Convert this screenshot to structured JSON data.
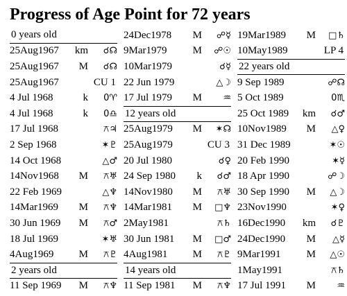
{
  "title": "Progress of Age Point for 72 years",
  "columns": [
    {
      "rows": [
        {
          "heading": "0 years old"
        },
        {
          "date": "25Aug1967",
          "tag": "km",
          "aspect": "☌☊"
        },
        {
          "date": "25Aug1967",
          "tag": "M",
          "aspect": "☌☊"
        },
        {
          "date": "25Aug1967",
          "tag": "CU 1"
        },
        {
          "date": "4 Jul 1968",
          "tag": "k",
          "aspect": "0♈"
        },
        {
          "date": "4 Jul 1968",
          "tag": "k",
          "aspect": "0♎"
        },
        {
          "date": "17 Jul 1968",
          "aspect": "⚻♃"
        },
        {
          "date": "2 Sep 1968",
          "aspect": "✶♇"
        },
        {
          "date": "14 Oct 1968",
          "aspect": "△♂"
        },
        {
          "date": "14Nov1968",
          "tag": "M",
          "aspect": "⚻♅"
        },
        {
          "date": "22 Feb 1969",
          "aspect": "△♆"
        },
        {
          "date": "14Mar1969",
          "tag": "M",
          "aspect": "⚻♆"
        },
        {
          "date": "30 Jun 1969",
          "tag": "M",
          "aspect": "⚻♂"
        },
        {
          "date": "18 Jul 1969",
          "aspect": "✶♅"
        },
        {
          "date": "4Aug1969",
          "tag": "M",
          "aspect": "⚻♇"
        },
        {
          "heading": "2 years old"
        },
        {
          "date": "11 Sep 1969",
          "tag": "M",
          "aspect": "⚻♆"
        }
      ]
    },
    {
      "rows": [
        {
          "date": "24Dec1978",
          "tag": "M",
          "aspect": "☍☿"
        },
        {
          "date": "9Mar1979",
          "tag": "M",
          "aspect": "☍☉"
        },
        {
          "date": "10Mar1979",
          "aspect": "☌☿"
        },
        {
          "date": "22 Jun 1979",
          "aspect": "△☽"
        },
        {
          "date": "17 Jul 1979",
          "tag": "M",
          "aspect": "♒"
        },
        {
          "heading": "12 years old"
        },
        {
          "date": "25Aug1979",
          "tag": "M",
          "aspect": "✶☊"
        },
        {
          "date": "25Aug1979",
          "tag": "CU 3"
        },
        {
          "date": "20 Jul 1980",
          "aspect": "☌♀"
        },
        {
          "date": "24 Sep 1980",
          "tag": "k",
          "aspect": "☌♂"
        },
        {
          "date": "14Nov1980",
          "tag": "M",
          "aspect": "⚻♅"
        },
        {
          "date": "14Mar1981",
          "tag": "M",
          "aspect": "□♆"
        },
        {
          "date": "2May1981",
          "aspect": "⚻♄"
        },
        {
          "date": "30 Jun 1981",
          "tag": "M",
          "aspect": "□♂"
        },
        {
          "date": "4Aug1981",
          "tag": "M",
          "aspect": "⚻♇"
        },
        {
          "heading": "14 years old"
        },
        {
          "date": "11 Sep 1981",
          "tag": "M",
          "aspect": "⚻♆"
        }
      ]
    },
    {
      "rows": [
        {
          "date": "19Mar1989",
          "tag": "M",
          "aspect": "□♄"
        },
        {
          "date": "10May1989",
          "tag": "LP 4"
        },
        {
          "heading": "22 years old"
        },
        {
          "date": "9 Sep 1989",
          "aspect": "☍☊"
        },
        {
          "date": "5 Oct 1989",
          "aspect": "0♏"
        },
        {
          "date": "25 Oct 1989",
          "tag": "km",
          "aspect": "☌♂"
        },
        {
          "date": "10Nov1989",
          "tag": "M",
          "aspect": "△♀"
        },
        {
          "date": "31 Dec 1989",
          "aspect": "✶☉"
        },
        {
          "date": "20 Feb 1990",
          "aspect": "✶☿"
        },
        {
          "date": "18 Apr 1990",
          "aspect": "☍☽"
        },
        {
          "date": "30 Sep 1990",
          "tag": "M",
          "aspect": "△☽"
        },
        {
          "date": "23Nov1990",
          "aspect": "✶♀"
        },
        {
          "date": "16Dec1990",
          "tag": "km",
          "aspect": "☌♇"
        },
        {
          "date": "24Dec1990",
          "tag": "M",
          "aspect": "△☿"
        },
        {
          "date": "9Mar1991",
          "tag": "M",
          "aspect": "△☉"
        },
        {
          "date": "1May1991",
          "aspect": "⚻♄"
        },
        {
          "date": "17 Jul 1991",
          "tag": "M",
          "aspect": "♒"
        }
      ]
    }
  ]
}
